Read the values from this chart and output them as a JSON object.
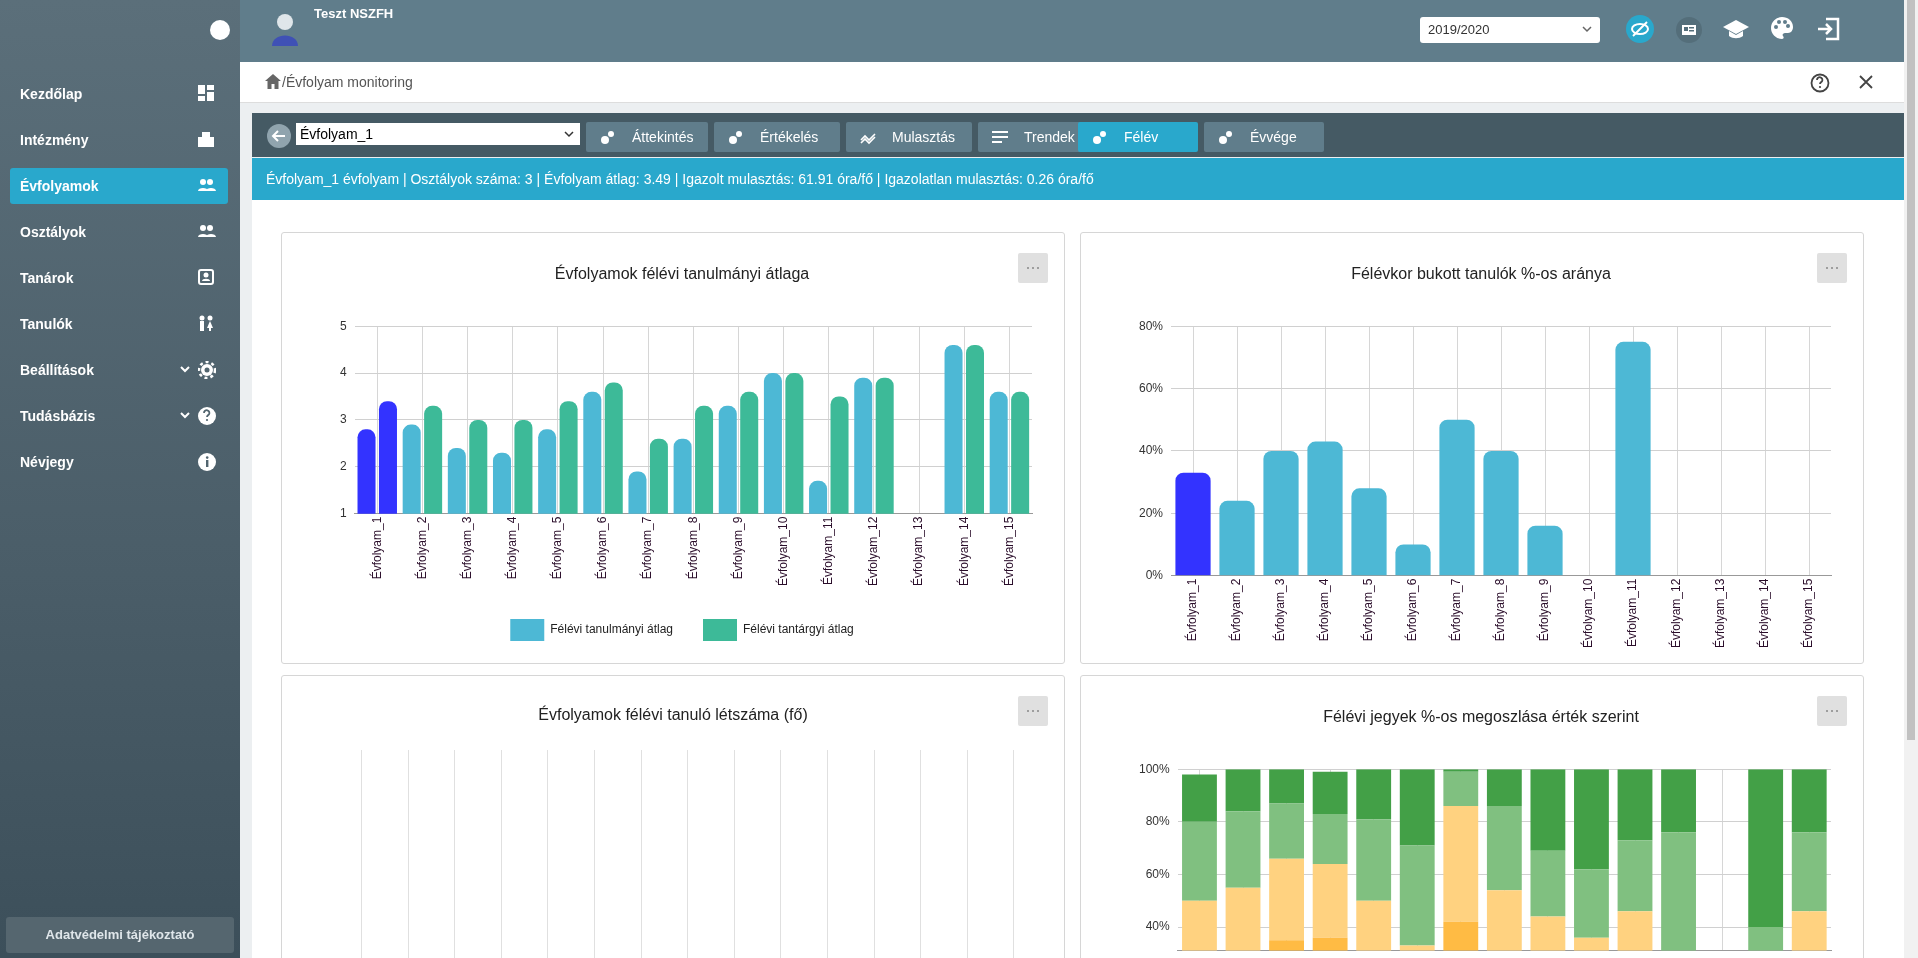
{
  "chart_data": [
    {
      "type": "other",
      "annotations": [
        "Teszt NSZFH",
        "2019/2020",
        "Kezdőlap",
        "Intézmény",
        "Évfolyamok",
        "Osztályok",
        "Tanárok",
        "Tanulók",
        "Beállítások",
        "Tudásbázis",
        "Névjegy",
        "Adatvédelmi tájékoztató",
        "/Évfolyam monitoring",
        "Évfolyam_1",
        "Áttekintés",
        "Értékelés",
        "Mulasztás",
        "Trendek",
        "Félév",
        "Évvége",
        "Évfolyam_1 évfolyam | Osztályok száma: 3 | Évfolyam átlag: 3.49 | Igazolt mulasztás: 61.91 óra/fő | Igazolatlan mulasztás: 0.26 óra/fő"
      ]
    },
    {
      "type": "bar",
      "title": "Évfolyamok félévi tanulmányi átlaga",
      "categories": [
        "Évfolyam_1",
        "Évfolyam_2",
        "Évfolyam_3",
        "Évfolyam_4",
        "Évfolyam_5",
        "Évfolyam_6",
        "Évfolyam_7",
        "Évfolyam_8",
        "Évfolyam_9",
        "Évfolyam_10",
        "Évfolyam_11",
        "Évfolyam_12",
        "Évfolyam_13",
        "Évfolyam_14",
        "Évfolyam_15"
      ],
      "series": [
        {
          "name": "Félévi tanulmányi átlag",
          "color": "#4db8d5",
          "colors": [
            "#3333ff",
            "#4db8d5",
            "#4db8d5",
            "#4db8d5",
            "#4db8d5",
            "#4db8d5",
            "#4db8d5",
            "#4db8d5",
            "#4db8d5",
            "#4db8d5",
            "#4db8d5",
            "#4db8d5",
            "#4db8d5",
            "#4db8d5",
            "#4db8d5"
          ],
          "values": [
            2.8,
            2.9,
            2.4,
            2.3,
            2.8,
            3.6,
            1.9,
            2.6,
            3.3,
            4.0,
            1.7,
            3.9,
            null,
            4.6,
            3.6
          ]
        },
        {
          "name": "Félévi tantárgyi átlag",
          "color": "#3dba98",
          "colors": [
            "#3333ff",
            "#3dba98",
            "#3dba98",
            "#3dba98",
            "#3dba98",
            "#3dba98",
            "#3dba98",
            "#3dba98",
            "#3dba98",
            "#3dba98",
            "#3dba98",
            "#3dba98",
            "#3dba98",
            "#3dba98",
            "#3dba98"
          ],
          "values": [
            3.4,
            3.3,
            3.0,
            3.0,
            3.4,
            3.8,
            2.6,
            3.3,
            3.6,
            4.0,
            3.5,
            3.9,
            null,
            4.6,
            3.6
          ]
        }
      ],
      "ylim": [
        1,
        5
      ],
      "yticks": [
        1,
        2,
        3,
        4,
        5
      ],
      "grid": true,
      "legend": "bottom"
    },
    {
      "type": "bar",
      "title": "Félévkor bukott tanulók %-os aránya",
      "categories": [
        "Évfolyam_1",
        "Évfolyam_2",
        "Évfolyam_3",
        "Évfolyam_4",
        "Évfolyam_5",
        "Évfolyam_6",
        "Évfolyam_7",
        "Évfolyam_8",
        "Évfolyam_9",
        "Évfolyam_10",
        "Évfolyam_11",
        "Évfolyam_12",
        "Évfolyam_13",
        "Évfolyam_14",
        "Évfolyam_15"
      ],
      "values": [
        33,
        24,
        40,
        43,
        28,
        10,
        50,
        40,
        16,
        0,
        75,
        0,
        0,
        0,
        0
      ],
      "colors": [
        "#3333ff",
        "#4db8d5",
        "#4db8d5",
        "#4db8d5",
        "#4db8d5",
        "#4db8d5",
        "#4db8d5",
        "#4db8d5",
        "#4db8d5",
        "#4db8d5",
        "#4db8d5",
        "#4db8d5",
        "#4db8d5",
        "#4db8d5",
        "#4db8d5"
      ],
      "ylim": [
        0,
        80
      ],
      "yticks": [
        {
          "value": 0,
          "label": "0%"
        },
        {
          "value": 20,
          "label": "20%"
        },
        {
          "value": 40,
          "label": "40%"
        },
        {
          "value": 60,
          "label": "60%"
        },
        {
          "value": 80,
          "label": "80%"
        }
      ],
      "grid": true
    },
    {
      "type": "other",
      "title": "Évfolyamok félévi tanuló létszáma (fő)"
    },
    {
      "type": "bar",
      "title": "Félévi jegyek %-os megoszlása érték szerint",
      "categories": [
        null,
        null,
        null,
        null,
        null,
        null,
        null,
        null,
        null,
        null,
        null,
        null,
        null,
        null,
        null
      ],
      "series": [
        {
          "color": "#ffbb44",
          "base": [
            null,
            null,
            31,
            31,
            null,
            null,
            31,
            null,
            null,
            null,
            null,
            null,
            null,
            null,
            null
          ],
          "values": [
            null,
            null,
            4,
            5,
            null,
            null,
            11,
            null,
            null,
            null,
            null,
            null,
            null,
            null,
            null
          ]
        },
        {
          "color": "#ffd280",
          "base": [
            31,
            31,
            35,
            36,
            31,
            31,
            42,
            31,
            31,
            31,
            31,
            null,
            null,
            null,
            31
          ],
          "values": [
            19,
            24,
            31,
            28,
            19,
            2,
            44,
            23,
            13,
            5,
            15,
            null,
            null,
            null,
            15
          ]
        },
        {
          "color": "#80c080",
          "base": [
            50,
            55,
            66,
            64,
            50,
            33,
            86,
            54,
            44,
            36,
            46,
            31,
            null,
            31,
            46
          ],
          "values": [
            30,
            29,
            21,
            19,
            31,
            38,
            13,
            32,
            25,
            26,
            27,
            45,
            null,
            9,
            30
          ]
        },
        {
          "color": "#43a047",
          "base": [
            80,
            84,
            87,
            83,
            81,
            71,
            99,
            86,
            69,
            62,
            73,
            76,
            null,
            40,
            76
          ],
          "values": [
            18,
            16,
            13,
            16,
            19,
            29,
            1,
            14,
            31,
            38,
            27,
            24,
            null,
            60,
            24
          ]
        }
      ],
      "ylim": [
        31,
        100
      ],
      "yticks": [
        {
          "value": 40,
          "label": "40%"
        },
        {
          "value": 60,
          "label": "60%"
        },
        {
          "value": 80,
          "label": "80%"
        },
        {
          "value": 100,
          "label": "100%"
        }
      ],
      "grid": true,
      "tick_labels": "y"
    }
  ]
}
